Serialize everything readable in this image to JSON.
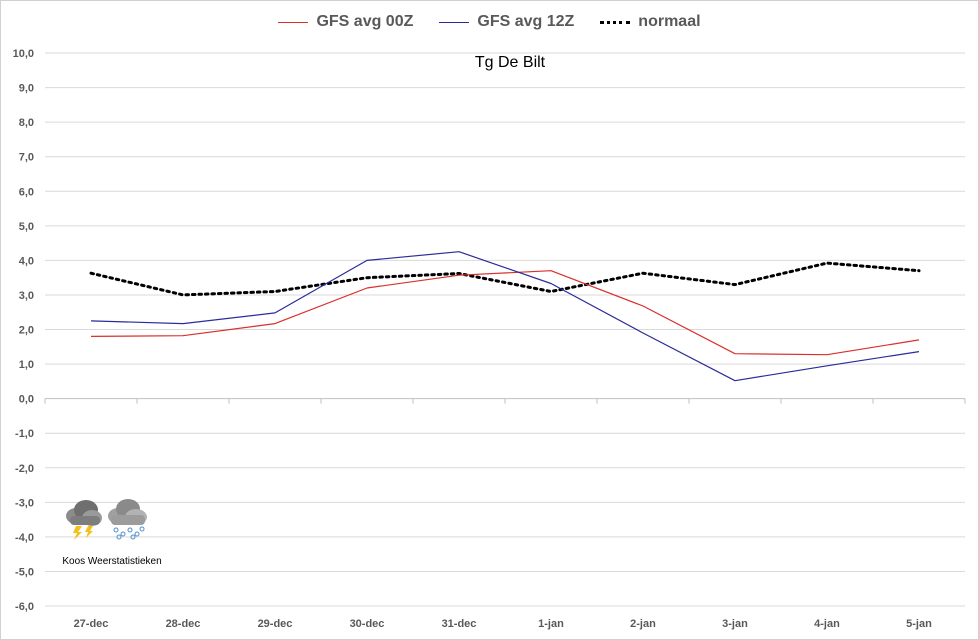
{
  "chart_data": {
    "type": "line",
    "title": "Tg De Bilt",
    "categories": [
      "27-dec",
      "28-dec",
      "29-dec",
      "30-dec",
      "31-dec",
      "1-jan",
      "2-jan",
      "3-jan",
      "4-jan",
      "5-jan"
    ],
    "ylim": [
      -6,
      10
    ],
    "yticks": [
      "-6,0",
      "-5,0",
      "-4,0",
      "-3,0",
      "-2,0",
      "-1,0",
      "0,0",
      "1,0",
      "2,0",
      "3,0",
      "4,0",
      "5,0",
      "6,0",
      "7,0",
      "8,0",
      "9,0",
      "10,0"
    ],
    "grid": true,
    "legend_position": "top-center",
    "series": [
      {
        "name": "GFS avg 00Z",
        "color": "#d9302b",
        "style": "solid",
        "values": [
          1.8,
          1.82,
          2.17,
          3.2,
          3.57,
          3.7,
          2.68,
          1.3,
          1.27,
          1.7
        ]
      },
      {
        "name": "GFS avg 12Z",
        "color": "#2b2b9b",
        "style": "solid",
        "values": [
          2.25,
          2.17,
          2.48,
          4.0,
          4.25,
          3.33,
          1.9,
          0.52,
          0.95,
          1.36
        ]
      },
      {
        "name": "normaal",
        "color": "#000000",
        "style": "dotted",
        "values": [
          3.63,
          3.0,
          3.1,
          3.5,
          3.62,
          3.1,
          3.63,
          3.3,
          3.92,
          3.7
        ]
      }
    ]
  },
  "logo": {
    "caption": "Koos Weerstatistieken",
    "icons": [
      "thunderstorm-cloud-icon",
      "snow-cloud-icon"
    ]
  }
}
